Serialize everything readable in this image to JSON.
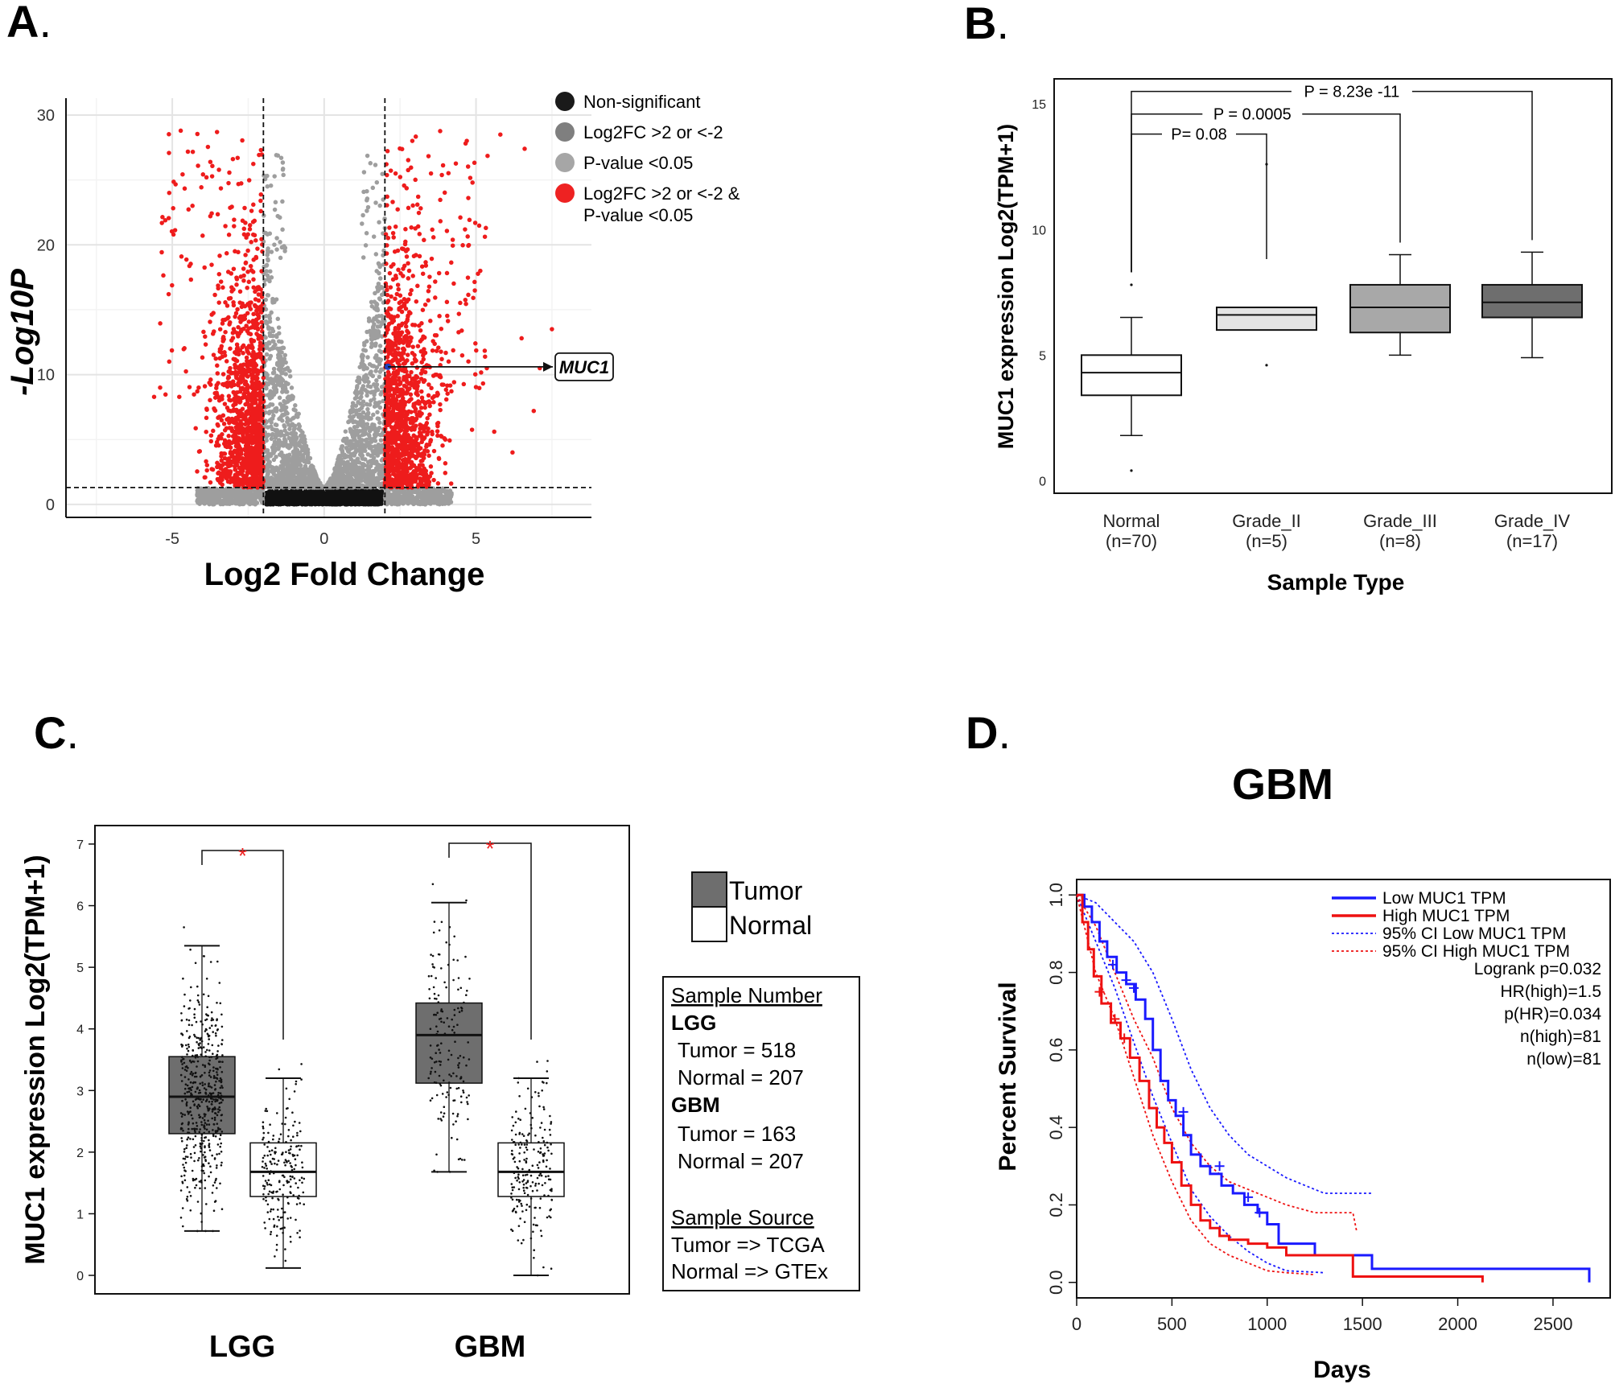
{
  "panels": {
    "a": "A",
    "b": "B",
    "c": "C",
    "d": "D",
    "dot": "."
  },
  "chart_data": [
    {
      "id": "A",
      "type": "scatter",
      "title": "",
      "xlabel": "Log2 Fold Change",
      "ylabel": "-Log10P",
      "xlim": [
        -8.5,
        8.8
      ],
      "ylim": [
        -1,
        31.3
      ],
      "xticks": [
        -5,
        0,
        5
      ],
      "yticks": [
        0,
        10,
        20,
        30
      ],
      "thresholds": {
        "log2fc": [
          -2,
          2
        ],
        "neg_log10p": 1.3
      },
      "legend": [
        {
          "label": "Non-significant",
          "color": "#1a1a1a"
        },
        {
          "label": "Log2FC >2 or <-2",
          "color": "#7f7f7f"
        },
        {
          "label": "P-value <0.05",
          "color": "#a6a6a6"
        },
        {
          "label": "Log2FC >2 or <-2 &",
          "label2": "P-value <0.05",
          "color": "#ee2222"
        }
      ],
      "highlight": {
        "gene": "MUC1",
        "x": 2.1,
        "y": 10.6
      },
      "colors": {
        "ns": "#111111",
        "grey": "#999999",
        "sig": "#ee1c1c",
        "highlight": "#1f3fbf"
      }
    },
    {
      "id": "B",
      "type": "box",
      "xlabel": "Sample Type",
      "ylabel": "MUC1 expression Log2(TPM+1)",
      "ylim": [
        -0.5,
        16
      ],
      "yticks": [
        0,
        5,
        10,
        15
      ],
      "groups": [
        {
          "name": "Normal",
          "n": "(n=70)",
          "q1": 3.4,
          "median": 4.3,
          "q3": 5.0,
          "wlo": 1.8,
          "whi": 6.5,
          "outliers": [
            7.8,
            0.4
          ],
          "fill": "#ffffff"
        },
        {
          "name": "Grade_II",
          "n": "(n=5)",
          "q1": 6.0,
          "median": 6.6,
          "q3": 6.9,
          "wlo": 6.0,
          "whi": 6.9,
          "outliers": [
            12.6,
            4.6
          ],
          "fill": "#e3e3e3"
        },
        {
          "name": "Grade_III",
          "n": "(n=8)",
          "q1": 5.9,
          "median": 6.9,
          "q3": 7.8,
          "wlo": 5.0,
          "whi": 9.0,
          "outliers": [],
          "fill": "#a8a8a8"
        },
        {
          "name": "Grade_IV",
          "n": "(n=17)",
          "q1": 6.5,
          "median": 7.1,
          "q3": 7.8,
          "wlo": 4.9,
          "whi": 9.1,
          "outliers": [],
          "fill": "#6e6e6e"
        }
      ],
      "comparisons": [
        {
          "label": "P= 0.08",
          "from": 0,
          "to": 1,
          "y": 13.8
        },
        {
          "label": "P = 0.0005",
          "from": 0,
          "to": 2,
          "y": 14.6
        },
        {
          "label": "P = 8.23e -11",
          "from": 0,
          "to": 3,
          "y": 15.5
        }
      ]
    },
    {
      "id": "C",
      "type": "box",
      "ylabel": "MUC1 expression Log2(TPM+1)",
      "ylim": [
        -0.3,
        7.3
      ],
      "yticks": [
        0,
        1,
        2,
        3,
        4,
        5,
        6,
        7
      ],
      "categories": [
        "LGG",
        "GBM"
      ],
      "boxes": [
        {
          "cat": "LGG",
          "kind": "Tumor",
          "q1": 2.3,
          "median": 2.9,
          "q3": 3.55,
          "wlo": 0.72,
          "whi": 5.35,
          "fill": "#6e6e6e",
          "n": 518
        },
        {
          "cat": "LGG",
          "kind": "Normal",
          "q1": 1.28,
          "median": 1.68,
          "q3": 2.15,
          "wlo": 0.12,
          "whi": 3.2,
          "fill": "#ffffff",
          "n": 207
        },
        {
          "cat": "GBM",
          "kind": "Tumor",
          "q1": 3.12,
          "median": 3.9,
          "q3": 4.42,
          "wlo": 1.68,
          "whi": 6.05,
          "fill": "#6e6e6e",
          "n": 163
        },
        {
          "cat": "GBM",
          "kind": "Normal",
          "q1": 1.28,
          "median": 1.68,
          "q3": 2.15,
          "wlo": 0.0,
          "whi": 3.2,
          "fill": "#ffffff",
          "n": 207
        }
      ],
      "significance": "*",
      "legend": [
        {
          "label": "Tumor",
          "fill": "#6e6e6e"
        },
        {
          "label": "Normal",
          "fill": "#ffffff"
        }
      ],
      "info": {
        "sample_number_title": "Sample Number",
        "lgg": "LGG",
        "lgg_tumor": "Tumor = 518",
        "lgg_normal": "Normal = 207",
        "gbm": "GBM",
        "gbm_tumor": "Tumor = 163",
        "gbm_normal": "Normal = 207",
        "source_title": "Sample Source",
        "source_tumor": "Tumor => TCGA",
        "source_normal": "Normal => GTEx"
      }
    },
    {
      "id": "D",
      "type": "line",
      "title": "GBM",
      "xlabel": "Days",
      "ylabel": "Percent Survival",
      "xlim": [
        0,
        2800
      ],
      "ylim": [
        -0.04,
        1.04
      ],
      "xticks": [
        0,
        500,
        1000,
        1500,
        2000,
        2500
      ],
      "yticks": [
        0.0,
        0.2,
        0.4,
        0.6,
        0.8,
        1.0
      ],
      "series": [
        {
          "name": "Low MUC1 TPM",
          "color": "#1a1aff",
          "dash": false,
          "points": [
            [
              0,
              1.0
            ],
            [
              40,
              0.97
            ],
            [
              80,
              0.93
            ],
            [
              120,
              0.88
            ],
            [
              160,
              0.84
            ],
            [
              210,
              0.8
            ],
            [
              260,
              0.77
            ],
            [
              310,
              0.73
            ],
            [
              360,
              0.68
            ],
            [
              400,
              0.6
            ],
            [
              440,
              0.52
            ],
            [
              480,
              0.47
            ],
            [
              520,
              0.43
            ],
            [
              560,
              0.38
            ],
            [
              600,
              0.33
            ],
            [
              650,
              0.3
            ],
            [
              700,
              0.28
            ],
            [
              760,
              0.25
            ],
            [
              820,
              0.23
            ],
            [
              880,
              0.2
            ],
            [
              950,
              0.18
            ],
            [
              1000,
              0.15
            ],
            [
              1060,
              0.1
            ],
            [
              1240,
              0.1
            ],
            [
              1250,
              0.07
            ],
            [
              1550,
              0.07
            ],
            [
              1550,
              0.035
            ],
            [
              2690,
              0.035
            ],
            [
              2690,
              0.0
            ]
          ]
        },
        {
          "name": "High MUC1 TPM",
          "color": "#ee1111",
          "dash": false,
          "points": [
            [
              0,
              1.0
            ],
            [
              30,
              0.93
            ],
            [
              60,
              0.86
            ],
            [
              90,
              0.79
            ],
            [
              130,
              0.72
            ],
            [
              180,
              0.67
            ],
            [
              230,
              0.63
            ],
            [
              280,
              0.58
            ],
            [
              330,
              0.52
            ],
            [
              380,
              0.45
            ],
            [
              420,
              0.4
            ],
            [
              460,
              0.36
            ],
            [
              500,
              0.31
            ],
            [
              550,
              0.25
            ],
            [
              600,
              0.2
            ],
            [
              650,
              0.16
            ],
            [
              700,
              0.14
            ],
            [
              750,
              0.12
            ],
            [
              800,
              0.11
            ],
            [
              900,
              0.1
            ],
            [
              1000,
              0.09
            ],
            [
              1100,
              0.07
            ],
            [
              1450,
              0.07
            ],
            [
              1450,
              0.015
            ],
            [
              2130,
              0.015
            ],
            [
              2130,
              0.0
            ]
          ]
        },
        {
          "name": "95% CI Low MUC1 TPM",
          "color": "#1a1aff",
          "dash": true,
          "points": [
            [
              0,
              1.0
            ],
            [
              100,
              0.98
            ],
            [
              200,
              0.93
            ],
            [
              300,
              0.88
            ],
            [
              400,
              0.8
            ],
            [
              500,
              0.68
            ],
            [
              600,
              0.55
            ],
            [
              700,
              0.45
            ],
            [
              800,
              0.38
            ],
            [
              900,
              0.33
            ],
            [
              1000,
              0.3
            ],
            [
              1100,
              0.27
            ],
            [
              1200,
              0.25
            ],
            [
              1300,
              0.23
            ],
            [
              1550,
              0.23
            ]
          ]
        },
        {
          "name": "95% CI Low lower",
          "color": "#1a1aff",
          "dash": true,
          "legend": false,
          "points": [
            [
              0,
              1.0
            ],
            [
              100,
              0.88
            ],
            [
              200,
              0.76
            ],
            [
              300,
              0.62
            ],
            [
              400,
              0.48
            ],
            [
              500,
              0.36
            ],
            [
              600,
              0.24
            ],
            [
              700,
              0.17
            ],
            [
              800,
              0.12
            ],
            [
              900,
              0.08
            ],
            [
              1000,
              0.05
            ],
            [
              1100,
              0.03
            ],
            [
              1300,
              0.025
            ]
          ]
        },
        {
          "name": "95% CI High MUC1 TPM",
          "color": "#ee1111",
          "dash": true,
          "points": [
            [
              0,
              1.0
            ],
            [
              100,
              0.92
            ],
            [
              200,
              0.8
            ],
            [
              300,
              0.68
            ],
            [
              400,
              0.58
            ],
            [
              500,
              0.45
            ],
            [
              600,
              0.36
            ],
            [
              700,
              0.3
            ],
            [
              800,
              0.26
            ],
            [
              900,
              0.24
            ],
            [
              1000,
              0.22
            ],
            [
              1100,
              0.2
            ],
            [
              1250,
              0.18
            ],
            [
              1450,
              0.18
            ],
            [
              1470,
              0.13
            ]
          ]
        },
        {
          "name": "95% CI High lower",
          "color": "#ee1111",
          "dash": true,
          "legend": false,
          "points": [
            [
              0,
              1.0
            ],
            [
              100,
              0.8
            ],
            [
              200,
              0.68
            ],
            [
              300,
              0.53
            ],
            [
              400,
              0.38
            ],
            [
              500,
              0.26
            ],
            [
              600,
              0.16
            ],
            [
              700,
              0.1
            ],
            [
              800,
              0.07
            ],
            [
              900,
              0.05
            ],
            [
              1000,
              0.03
            ],
            [
              1100,
              0.025
            ],
            [
              1250,
              0.02
            ]
          ]
        }
      ],
      "stats": [
        "Logrank p=0.032",
        "HR(high)=1.5",
        "p(HR)=0.034",
        "n(high)=81",
        "n(low)=81"
      ]
    }
  ]
}
